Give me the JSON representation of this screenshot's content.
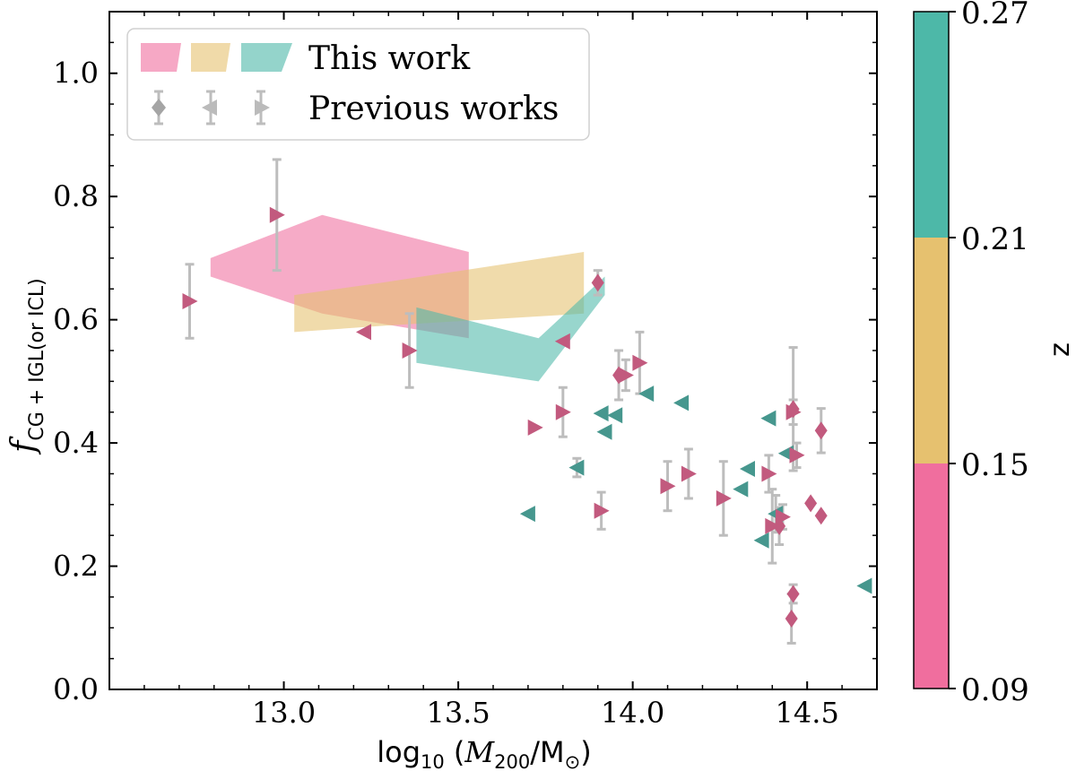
{
  "chart_data": {
    "type": "scatter",
    "xlabel": "log10 (M200/M⊙)",
    "ylabel": "fCG + IGL(or ICL)",
    "x_tick_labels": [
      "13.0",
      "13.5",
      "14.0",
      "14.5"
    ],
    "y_tick_labels": [
      "0.0",
      "0.2",
      "0.4",
      "0.6",
      "0.8",
      "1.0"
    ],
    "xlim": [
      12.5,
      14.7
    ],
    "ylim": [
      0.0,
      1.1
    ],
    "legend": {
      "placement": "top-left",
      "this_work_label": "This work",
      "previous_label": "Previous works"
    },
    "colorbar": {
      "label": "z",
      "range": [
        0.09,
        0.27
      ],
      "tick_labels": [
        "0.09",
        "0.15",
        "0.21",
        "0.27"
      ],
      "colors": [
        "#f06e9e",
        "#e6c16f",
        "#4db8a8"
      ]
    },
    "colors": {
      "low_z": "#f06e9e",
      "mid_z": "#e6c16f",
      "high_z": "#4db8a8",
      "marker_low": "#c25a7e",
      "marker_high": "#46978e",
      "error_bar": "#bdbdbd"
    },
    "bands": [
      {
        "name": "z 0.09-0.15",
        "color": "#f06e9e",
        "upper": [
          [
            12.79,
            0.7
          ],
          [
            13.11,
            0.77
          ],
          [
            13.53,
            0.71
          ]
        ],
        "lower": [
          [
            12.79,
            0.67
          ],
          [
            13.11,
            0.61
          ],
          [
            13.53,
            0.57
          ]
        ]
      },
      {
        "name": "z 0.15-0.21",
        "color": "#e6c16f",
        "upper": [
          [
            13.03,
            0.64
          ],
          [
            13.28,
            0.66
          ],
          [
            13.86,
            0.71
          ]
        ],
        "lower": [
          [
            13.03,
            0.58
          ],
          [
            13.28,
            0.59
          ],
          [
            13.86,
            0.61
          ]
        ]
      },
      {
        "name": "z 0.21-0.27",
        "color": "#4db8a8",
        "upper": [
          [
            13.38,
            0.62
          ],
          [
            13.73,
            0.57
          ],
          [
            13.92,
            0.67
          ]
        ],
        "lower": [
          [
            13.38,
            0.53
          ],
          [
            13.73,
            0.5
          ],
          [
            13.92,
            0.64
          ]
        ]
      }
    ],
    "points": [
      {
        "x": 12.73,
        "y": 0.63,
        "marker": "right",
        "z": "low",
        "err": 0.06
      },
      {
        "x": 12.98,
        "y": 0.77,
        "marker": "right",
        "z": "low",
        "err": 0.09
      },
      {
        "x": 13.23,
        "y": 0.58,
        "marker": "left",
        "z": "low",
        "err": 0
      },
      {
        "x": 13.36,
        "y": 0.55,
        "marker": "right",
        "z": "low",
        "err": 0.06
      },
      {
        "x": 13.7,
        "y": 0.285,
        "marker": "left",
        "z": "high",
        "err": 0
      },
      {
        "x": 13.72,
        "y": 0.425,
        "marker": "right",
        "z": "low",
        "err": 0
      },
      {
        "x": 13.8,
        "y": 0.565,
        "marker": "left",
        "z": "low",
        "err": 0
      },
      {
        "x": 13.8,
        "y": 0.45,
        "marker": "right",
        "z": "low",
        "err": 0.04
      },
      {
        "x": 13.84,
        "y": 0.36,
        "marker": "left",
        "z": "high",
        "err": 0.015
      },
      {
        "x": 13.9,
        "y": 0.66,
        "marker": "diamond",
        "z": "low",
        "err": 0.02
      },
      {
        "x": 13.91,
        "y": 0.29,
        "marker": "right",
        "z": "low",
        "err": 0.03
      },
      {
        "x": 13.91,
        "y": 0.448,
        "marker": "left",
        "z": "high",
        "err": 0
      },
      {
        "x": 13.92,
        "y": 0.418,
        "marker": "left",
        "z": "high",
        "err": 0
      },
      {
        "x": 13.95,
        "y": 0.445,
        "marker": "left",
        "z": "high",
        "err": 0
      },
      {
        "x": 13.96,
        "y": 0.51,
        "marker": "diamond",
        "z": "low",
        "err": 0.04
      },
      {
        "x": 13.98,
        "y": 0.51,
        "marker": "right",
        "z": "low",
        "err": 0.025
      },
      {
        "x": 14.02,
        "y": 0.53,
        "marker": "right",
        "z": "low",
        "err": 0.05
      },
      {
        "x": 14.04,
        "y": 0.48,
        "marker": "left",
        "z": "high",
        "err": 0
      },
      {
        "x": 14.1,
        "y": 0.33,
        "marker": "right",
        "z": "low",
        "err": 0.04
      },
      {
        "x": 14.14,
        "y": 0.465,
        "marker": "left",
        "z": "high",
        "err": 0
      },
      {
        "x": 14.16,
        "y": 0.35,
        "marker": "right",
        "z": "low",
        "err": 0.04
      },
      {
        "x": 14.26,
        "y": 0.31,
        "marker": "right",
        "z": "low",
        "err": 0.06
      },
      {
        "x": 14.31,
        "y": 0.325,
        "marker": "left",
        "z": "high",
        "err": 0
      },
      {
        "x": 14.33,
        "y": 0.358,
        "marker": "left",
        "z": "high",
        "err": 0
      },
      {
        "x": 14.37,
        "y": 0.242,
        "marker": "left",
        "z": "high",
        "err": 0
      },
      {
        "x": 14.39,
        "y": 0.44,
        "marker": "left",
        "z": "high",
        "err": 0
      },
      {
        "x": 14.39,
        "y": 0.35,
        "marker": "right",
        "z": "low",
        "err": 0.03
      },
      {
        "x": 14.4,
        "y": 0.265,
        "marker": "right",
        "z": "low",
        "err": 0.06
      },
      {
        "x": 14.41,
        "y": 0.285,
        "marker": "left",
        "z": "high",
        "err": 0.03
      },
      {
        "x": 14.42,
        "y": 0.265,
        "marker": "diamond",
        "z": "low",
        "err": 0.03
      },
      {
        "x": 14.43,
        "y": 0.28,
        "marker": "right",
        "z": "low",
        "err": 0.02
      },
      {
        "x": 14.44,
        "y": 0.383,
        "marker": "left",
        "z": "high",
        "err": 0
      },
      {
        "x": 14.46,
        "y": 0.455,
        "marker": "diamond",
        "z": "low",
        "err": 0.1
      },
      {
        "x": 14.46,
        "y": 0.45,
        "marker": "right",
        "z": "low",
        "err": 0.02
      },
      {
        "x": 14.47,
        "y": 0.38,
        "marker": "right",
        "z": "low",
        "err": 0.02
      },
      {
        "x": 14.46,
        "y": 0.155,
        "marker": "diamond",
        "z": "low",
        "err": 0.015
      },
      {
        "x": 14.455,
        "y": 0.115,
        "marker": "diamond",
        "z": "low",
        "err": 0.04
      },
      {
        "x": 14.51,
        "y": 0.302,
        "marker": "diamond",
        "z": "low",
        "err": 0
      },
      {
        "x": 14.54,
        "y": 0.282,
        "marker": "diamond",
        "z": "low",
        "err": 0
      },
      {
        "x": 14.54,
        "y": 0.42,
        "marker": "diamond",
        "z": "low",
        "err": 0.036
      },
      {
        "x": 14.665,
        "y": 0.168,
        "marker": "left",
        "z": "high",
        "err": 0
      }
    ]
  }
}
